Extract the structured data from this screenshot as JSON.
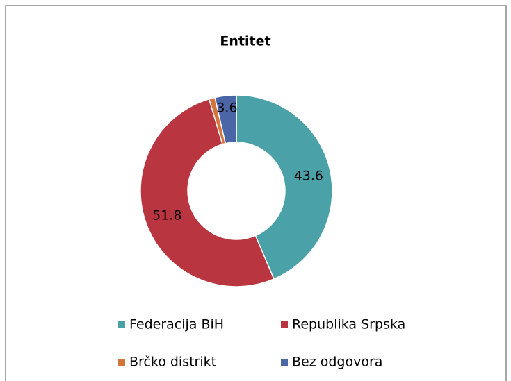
{
  "chart_data": {
    "type": "pie",
    "title": "Entitet",
    "categories": [
      "Federacija BiH",
      "Republika Srpska",
      "Brčko distrikt",
      "Bez odgovora"
    ],
    "values": [
      43.6,
      51.8,
      1.0,
      3.6
    ],
    "value_labels": [
      "43.6",
      "51.8",
      null,
      "3.6"
    ],
    "colors": [
      "#4aa2a8",
      "#b9353f",
      "#d6743e",
      "#4b66a6"
    ],
    "legend": "bottom"
  }
}
